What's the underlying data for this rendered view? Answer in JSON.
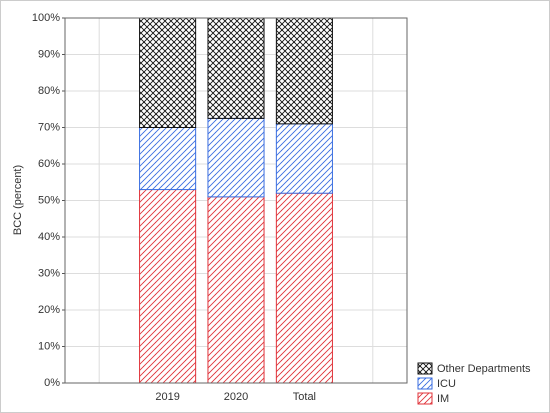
{
  "chart_data": {
    "type": "stacked_bar",
    "y_label": "BCC (percent)",
    "categories": [
      null,
      "2019",
      "2020",
      "Total",
      null
    ],
    "series": [
      {
        "name": "IM",
        "color": "#e0333a",
        "hatch": "diagonal",
        "values": [
          null,
          53,
          51,
          52,
          null
        ]
      },
      {
        "name": "ICU",
        "color": "#3a6ee0",
        "hatch": "diagonal",
        "values": [
          null,
          17,
          21.5,
          19,
          null
        ]
      },
      {
        "name": "Other Departments",
        "color": "#111111",
        "hatch": "cross",
        "values": [
          null,
          30,
          27.5,
          29,
          null
        ]
      }
    ],
    "ylim": [
      0,
      100
    ],
    "yticks": [
      {
        "value": 0,
        "label": "0%"
      },
      {
        "value": 10,
        "label": "10%"
      },
      {
        "value": 20,
        "label": "20%"
      },
      {
        "value": 30,
        "label": "30%"
      },
      {
        "value": 40,
        "label": "40%"
      },
      {
        "value": 50,
        "label": "50%"
      },
      {
        "value": 60,
        "label": "60%"
      },
      {
        "value": 70,
        "label": "70%"
      },
      {
        "value": 80,
        "label": "80%"
      },
      {
        "value": 90,
        "label": "90%"
      },
      {
        "value": 100,
        "label": "100%"
      }
    ],
    "grid": true,
    "legend": "bottom-right"
  }
}
